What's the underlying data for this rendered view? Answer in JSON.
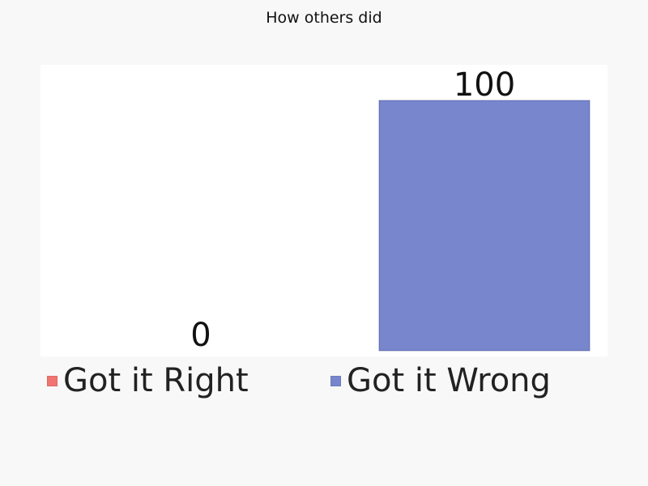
{
  "chart_data": {
    "type": "bar",
    "title": "How others did",
    "categories": [
      "Got it Right",
      "Got it Wrong"
    ],
    "values": [
      0,
      100
    ],
    "colors": [
      "#f07470",
      "#7886cd"
    ],
    "ylim": [
      0,
      100
    ],
    "grid": false,
    "legend_position": "bottom",
    "data_labels": [
      "0",
      "100"
    ],
    "legend": [
      "Got it Right",
      "Got it Wrong"
    ]
  }
}
